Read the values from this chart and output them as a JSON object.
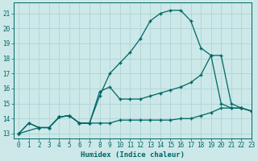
{
  "xlabel": "Humidex (Indice chaleur)",
  "bg_color": "#cce8e8",
  "grid_color": "#b0d4d4",
  "line_color": "#006666",
  "xlim": [
    -0.5,
    23
  ],
  "ylim": [
    12.7,
    21.7
  ],
  "yticks": [
    13,
    14,
    15,
    16,
    17,
    18,
    19,
    20,
    21
  ],
  "xticks": [
    0,
    1,
    2,
    3,
    4,
    5,
    6,
    7,
    8,
    9,
    10,
    11,
    12,
    13,
    14,
    15,
    16,
    17,
    18,
    19,
    20,
    21,
    22,
    23
  ],
  "line1_x": [
    0,
    1,
    2,
    3,
    4,
    5,
    6,
    7,
    8,
    9,
    10,
    11,
    12,
    13,
    14,
    15,
    16,
    17,
    18,
    19,
    20,
    21,
    22,
    23
  ],
  "line1_y": [
    13.0,
    13.7,
    13.4,
    13.4,
    14.1,
    14.2,
    13.7,
    13.7,
    13.7,
    13.7,
    13.9,
    13.9,
    13.9,
    13.9,
    13.9,
    13.9,
    14.0,
    14.0,
    14.2,
    14.4,
    14.7,
    14.7,
    14.7,
    14.5
  ],
  "line2_x": [
    0,
    2,
    3,
    4,
    5,
    6,
    7,
    8,
    9,
    10,
    11,
    12,
    13,
    14,
    15,
    16,
    17,
    18,
    19,
    20,
    21,
    22,
    23
  ],
  "line2_y": [
    13.0,
    13.4,
    13.4,
    14.1,
    14.2,
    13.7,
    13.7,
    15.8,
    16.1,
    15.3,
    15.3,
    15.3,
    15.5,
    15.7,
    15.9,
    16.1,
    16.4,
    16.9,
    18.2,
    18.2,
    15.0,
    14.7,
    14.5
  ],
  "line3_x": [
    0,
    1,
    2,
    3,
    4,
    5,
    6,
    7,
    8,
    9,
    10,
    11,
    12,
    13,
    14,
    15,
    16,
    17,
    18,
    19,
    20,
    21,
    22,
    23
  ],
  "line3_y": [
    13.0,
    13.7,
    13.4,
    13.4,
    14.1,
    14.2,
    13.7,
    13.7,
    15.5,
    17.0,
    17.7,
    18.4,
    19.3,
    20.5,
    21.0,
    21.2,
    21.2,
    20.5,
    18.7,
    18.2,
    15.0,
    14.7,
    14.7,
    14.5
  ]
}
